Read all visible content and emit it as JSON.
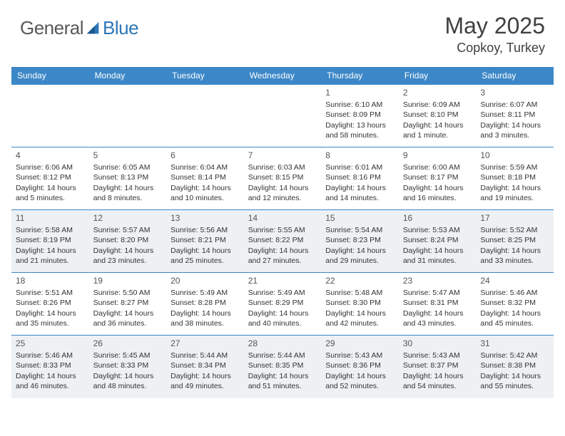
{
  "brand": {
    "general": "General",
    "blue": "Blue"
  },
  "title": {
    "month": "May 2025",
    "location": "Copkoy, Turkey"
  },
  "colors": {
    "header_bg": "#3c87c7",
    "header_text": "#ffffff",
    "border": "#3c87c7",
    "shaded": "#eef1f4",
    "text": "#333333",
    "brand_blue": "#2d77b7",
    "brand_gray": "#585858"
  },
  "dayNames": [
    "Sunday",
    "Monday",
    "Tuesday",
    "Wednesday",
    "Thursday",
    "Friday",
    "Saturday"
  ],
  "weeks": [
    [
      {
        "empty": true
      },
      {
        "empty": true
      },
      {
        "empty": true
      },
      {
        "empty": true
      },
      {
        "day": "1",
        "sunrise": "6:10 AM",
        "sunset": "8:09 PM",
        "daylight": "13 hours and 58 minutes."
      },
      {
        "day": "2",
        "sunrise": "6:09 AM",
        "sunset": "8:10 PM",
        "daylight": "14 hours and 1 minute."
      },
      {
        "day": "3",
        "sunrise": "6:07 AM",
        "sunset": "8:11 PM",
        "daylight": "14 hours and 3 minutes."
      }
    ],
    [
      {
        "day": "4",
        "sunrise": "6:06 AM",
        "sunset": "8:12 PM",
        "daylight": "14 hours and 5 minutes."
      },
      {
        "day": "5",
        "sunrise": "6:05 AM",
        "sunset": "8:13 PM",
        "daylight": "14 hours and 8 minutes."
      },
      {
        "day": "6",
        "sunrise": "6:04 AM",
        "sunset": "8:14 PM",
        "daylight": "14 hours and 10 minutes."
      },
      {
        "day": "7",
        "sunrise": "6:03 AM",
        "sunset": "8:15 PM",
        "daylight": "14 hours and 12 minutes."
      },
      {
        "day": "8",
        "sunrise": "6:01 AM",
        "sunset": "8:16 PM",
        "daylight": "14 hours and 14 minutes."
      },
      {
        "day": "9",
        "sunrise": "6:00 AM",
        "sunset": "8:17 PM",
        "daylight": "14 hours and 16 minutes."
      },
      {
        "day": "10",
        "sunrise": "5:59 AM",
        "sunset": "8:18 PM",
        "daylight": "14 hours and 19 minutes."
      }
    ],
    [
      {
        "day": "11",
        "sunrise": "5:58 AM",
        "sunset": "8:19 PM",
        "daylight": "14 hours and 21 minutes.",
        "shaded": true
      },
      {
        "day": "12",
        "sunrise": "5:57 AM",
        "sunset": "8:20 PM",
        "daylight": "14 hours and 23 minutes.",
        "shaded": true
      },
      {
        "day": "13",
        "sunrise": "5:56 AM",
        "sunset": "8:21 PM",
        "daylight": "14 hours and 25 minutes.",
        "shaded": true
      },
      {
        "day": "14",
        "sunrise": "5:55 AM",
        "sunset": "8:22 PM",
        "daylight": "14 hours and 27 minutes.",
        "shaded": true
      },
      {
        "day": "15",
        "sunrise": "5:54 AM",
        "sunset": "8:23 PM",
        "daylight": "14 hours and 29 minutes.",
        "shaded": true
      },
      {
        "day": "16",
        "sunrise": "5:53 AM",
        "sunset": "8:24 PM",
        "daylight": "14 hours and 31 minutes.",
        "shaded": true
      },
      {
        "day": "17",
        "sunrise": "5:52 AM",
        "sunset": "8:25 PM",
        "daylight": "14 hours and 33 minutes.",
        "shaded": true
      }
    ],
    [
      {
        "day": "18",
        "sunrise": "5:51 AM",
        "sunset": "8:26 PM",
        "daylight": "14 hours and 35 minutes."
      },
      {
        "day": "19",
        "sunrise": "5:50 AM",
        "sunset": "8:27 PM",
        "daylight": "14 hours and 36 minutes."
      },
      {
        "day": "20",
        "sunrise": "5:49 AM",
        "sunset": "8:28 PM",
        "daylight": "14 hours and 38 minutes."
      },
      {
        "day": "21",
        "sunrise": "5:49 AM",
        "sunset": "8:29 PM",
        "daylight": "14 hours and 40 minutes."
      },
      {
        "day": "22",
        "sunrise": "5:48 AM",
        "sunset": "8:30 PM",
        "daylight": "14 hours and 42 minutes."
      },
      {
        "day": "23",
        "sunrise": "5:47 AM",
        "sunset": "8:31 PM",
        "daylight": "14 hours and 43 minutes."
      },
      {
        "day": "24",
        "sunrise": "5:46 AM",
        "sunset": "8:32 PM",
        "daylight": "14 hours and 45 minutes."
      }
    ],
    [
      {
        "day": "25",
        "sunrise": "5:46 AM",
        "sunset": "8:33 PM",
        "daylight": "14 hours and 46 minutes.",
        "shaded": true
      },
      {
        "day": "26",
        "sunrise": "5:45 AM",
        "sunset": "8:33 PM",
        "daylight": "14 hours and 48 minutes.",
        "shaded": true
      },
      {
        "day": "27",
        "sunrise": "5:44 AM",
        "sunset": "8:34 PM",
        "daylight": "14 hours and 49 minutes.",
        "shaded": true
      },
      {
        "day": "28",
        "sunrise": "5:44 AM",
        "sunset": "8:35 PM",
        "daylight": "14 hours and 51 minutes.",
        "shaded": true
      },
      {
        "day": "29",
        "sunrise": "5:43 AM",
        "sunset": "8:36 PM",
        "daylight": "14 hours and 52 minutes.",
        "shaded": true
      },
      {
        "day": "30",
        "sunrise": "5:43 AM",
        "sunset": "8:37 PM",
        "daylight": "14 hours and 54 minutes.",
        "shaded": true
      },
      {
        "day": "31",
        "sunrise": "5:42 AM",
        "sunset": "8:38 PM",
        "daylight": "14 hours and 55 minutes.",
        "shaded": true
      }
    ]
  ],
  "labels": {
    "sunrise": "Sunrise: ",
    "sunset": "Sunset: ",
    "daylight": "Daylight: "
  }
}
